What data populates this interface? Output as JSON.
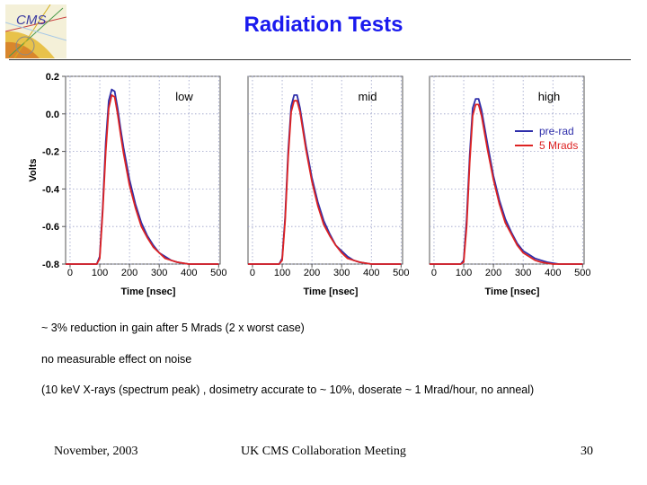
{
  "header": {
    "title": "Radiation Tests"
  },
  "chart_data": {
    "type": "line",
    "title": "",
    "ylabel": "Volts",
    "xlabel": "Time [nsec]",
    "xlim": [
      0,
      500
    ],
    "ylim": [
      -0.8,
      0.2
    ],
    "xticks": [
      0,
      100,
      200,
      300,
      400,
      500
    ],
    "yticks": [
      0.2,
      0.0,
      -0.2,
      -0.4,
      -0.6,
      -0.8
    ],
    "ytick_labels": [
      "0.2",
      "0.0",
      "-0.2",
      "-0.4",
      "-0.6",
      "-0.8"
    ],
    "grid": true,
    "legend": {
      "position": "top-right (third panel)",
      "entries": [
        "pre-rad",
        "5 Mrads"
      ]
    },
    "series_colors": {
      "pre-rad": "#2e2eaa",
      "5 Mrads": "#dd2222"
    },
    "x": [
      -15,
      90,
      100,
      110,
      120,
      130,
      140,
      150,
      160,
      170,
      180,
      200,
      220,
      240,
      260,
      280,
      300,
      320,
      340,
      360,
      380,
      400,
      420,
      440,
      450,
      500
    ],
    "panels": [
      {
        "label": "low",
        "series": [
          {
            "name": "pre-rad",
            "values": [
              -0.8,
              -0.8,
              -0.76,
              -0.5,
              -0.15,
              0.07,
              0.13,
              0.12,
              0.03,
              -0.08,
              -0.18,
              -0.35,
              -0.48,
              -0.58,
              -0.65,
              -0.7,
              -0.74,
              -0.76,
              -0.78,
              -0.79,
              -0.795,
              -0.8,
              -0.8,
              -0.8,
              -0.8,
              -0.8
            ]
          },
          {
            "name": "5 Mrads",
            "values": [
              -0.8,
              -0.8,
              -0.77,
              -0.52,
              -0.2,
              0.03,
              0.1,
              0.09,
              0.0,
              -0.11,
              -0.21,
              -0.38,
              -0.5,
              -0.6,
              -0.66,
              -0.71,
              -0.74,
              -0.77,
              -0.78,
              -0.79,
              -0.795,
              -0.8,
              -0.8,
              -0.8,
              -0.8,
              -0.8
            ]
          }
        ]
      },
      {
        "label": "mid",
        "series": [
          {
            "name": "pre-rad",
            "values": [
              -0.8,
              -0.8,
              -0.77,
              -0.55,
              -0.2,
              0.04,
              0.1,
              0.1,
              0.03,
              -0.07,
              -0.17,
              -0.34,
              -0.47,
              -0.57,
              -0.64,
              -0.7,
              -0.73,
              -0.76,
              -0.78,
              -0.79,
              -0.795,
              -0.8,
              -0.8,
              -0.8,
              -0.8,
              -0.8
            ]
          },
          {
            "name": "5 Mrads",
            "values": [
              -0.8,
              -0.8,
              -0.78,
              -0.57,
              -0.23,
              0.01,
              0.07,
              0.07,
              0.01,
              -0.09,
              -0.19,
              -0.36,
              -0.49,
              -0.59,
              -0.65,
              -0.7,
              -0.74,
              -0.77,
              -0.78,
              -0.79,
              -0.795,
              -0.8,
              -0.8,
              -0.8,
              -0.8,
              -0.8
            ]
          }
        ]
      },
      {
        "label": "high",
        "series": [
          {
            "name": "pre-rad",
            "values": [
              -0.8,
              -0.8,
              -0.78,
              -0.56,
              -0.22,
              0.03,
              0.08,
              0.08,
              0.02,
              -0.07,
              -0.16,
              -0.33,
              -0.46,
              -0.56,
              -0.63,
              -0.69,
              -0.73,
              -0.75,
              -0.77,
              -0.78,
              -0.79,
              -0.795,
              -0.8,
              -0.8,
              -0.8,
              -0.8
            ]
          },
          {
            "name": "5 Mrads",
            "values": [
              -0.8,
              -0.8,
              -0.79,
              -0.6,
              -0.26,
              -0.01,
              0.05,
              0.05,
              -0.01,
              -0.1,
              -0.19,
              -0.35,
              -0.48,
              -0.58,
              -0.64,
              -0.7,
              -0.74,
              -0.76,
              -0.78,
              -0.79,
              -0.795,
              -0.8,
              -0.8,
              -0.8,
              -0.8,
              -0.8
            ]
          }
        ]
      }
    ]
  },
  "notes": [
    "~ 3% reduction in gain after 5 Mrads (2 x worst case)",
    "no measurable effect on noise",
    "(10 keV X-rays (spectrum peak) , dosimetry accurate to ~ 10%, doserate ~ 1 Mrad/hour, no anneal)"
  ],
  "footer": {
    "date": "November, 2003",
    "meeting": "UK CMS Collaboration Meeting",
    "page": "30"
  }
}
